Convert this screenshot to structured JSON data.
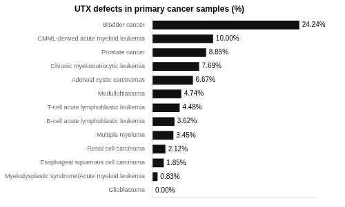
{
  "chart_data": {
    "type": "bar",
    "orientation": "horizontal",
    "title": "UTX defects in primary cancer samples (%)",
    "categories": [
      "Glioblastoma",
      "Myelodysplastic syndrome/Acute myeloid leukemia",
      "Esophageal squamous cell carcinoma",
      "Renal cell carcinoma",
      "Multiple myeloma",
      "B-cell acute lymphoblastic leukemia",
      "T-cell acute lymphoblastic leukemia",
      "Medulloblastoma",
      "Adenoid cystic carcinomas",
      "Chronic myelomonocytic leukemia",
      "Prostate cancer",
      "CMML-derived acute myeloid leukemia",
      "Bladder cancer"
    ],
    "values": [
      0.0,
      0.83,
      1.85,
      2.12,
      3.45,
      3.62,
      4.48,
      4.74,
      6.67,
      7.69,
      8.85,
      10.0,
      24.24
    ],
    "value_labels": [
      "0.00%",
      "0.83%",
      "1.85%",
      "2.12%",
      "3.45%",
      "3.62%",
      "4.48%",
      "4.74%",
      "6.67%",
      "7.69%",
      "8.85%",
      "10.00%",
      "24.24%"
    ],
    "data_labels": true,
    "color": "#111111",
    "xlim": [
      0,
      27
    ],
    "tick_labels": "y",
    "grid": false
  }
}
